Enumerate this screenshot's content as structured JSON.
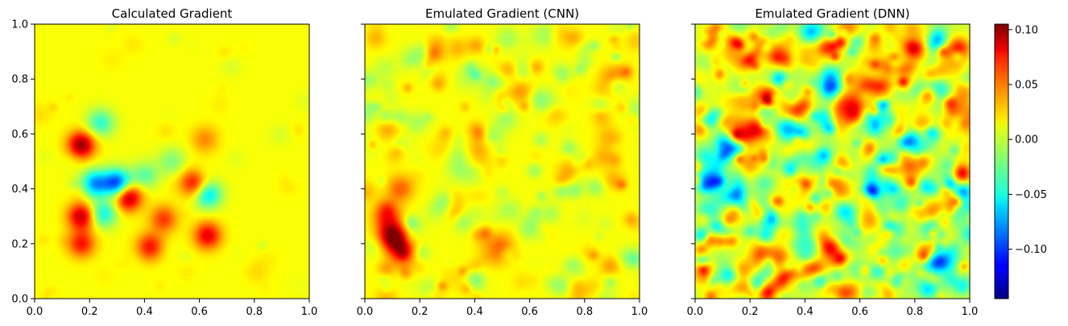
{
  "chart_data": [
    {
      "type": "heatmap",
      "title": "Calculated Gradient",
      "xlim": [
        0,
        1
      ],
      "ylim": [
        0,
        1
      ],
      "x_ticks": [
        "0.0",
        "0.2",
        "0.4",
        "0.6",
        "0.8",
        "1.0"
      ],
      "y_ticks": [
        "0.0",
        "0.2",
        "0.4",
        "0.6",
        "0.8",
        "1.0"
      ],
      "show_y_tick_labels": true,
      "colormap": "jet",
      "background_value": 0.01,
      "blobs": [
        {
          "x": 0.17,
          "y": 0.56,
          "value": 0.09
        },
        {
          "x": 0.34,
          "y": 0.37,
          "value": 0.09
        },
        {
          "x": 0.17,
          "y": 0.3,
          "value": 0.08
        },
        {
          "x": 0.17,
          "y": 0.2,
          "value": 0.06
        },
        {
          "x": 0.3,
          "y": 0.42,
          "value": -0.11
        },
        {
          "x": 0.22,
          "y": 0.42,
          "value": -0.08
        },
        {
          "x": 0.25,
          "y": 0.31,
          "value": -0.06
        },
        {
          "x": 0.58,
          "y": 0.42,
          "value": 0.07
        },
        {
          "x": 0.63,
          "y": 0.38,
          "value": -0.07
        },
        {
          "x": 0.24,
          "y": 0.64,
          "value": -0.05
        },
        {
          "x": 0.47,
          "y": 0.29,
          "value": 0.05
        },
        {
          "x": 0.42,
          "y": 0.19,
          "value": 0.06
        },
        {
          "x": 0.63,
          "y": 0.23,
          "value": 0.07
        },
        {
          "x": 0.62,
          "y": 0.58,
          "value": 0.03
        },
        {
          "x": 0.4,
          "y": 0.45,
          "value": -0.04
        },
        {
          "x": 0.5,
          "y": 0.5,
          "value": -0.03
        }
      ]
    },
    {
      "type": "heatmap",
      "title": "Emulated Gradient (CNN)",
      "xlim": [
        0,
        1
      ],
      "ylim": [
        0,
        1
      ],
      "x_ticks": [
        "0.0",
        "0.2",
        "0.4",
        "0.6",
        "0.8",
        "1.0"
      ],
      "y_ticks": [
        "0.0",
        "0.2",
        "0.4",
        "0.6",
        "0.8",
        "1.0"
      ],
      "show_y_tick_labels": false,
      "colormap": "jet",
      "background_value": 0.01,
      "blobs": [
        {
          "x": 0.1,
          "y": 0.23,
          "value": 0.09
        },
        {
          "x": 0.14,
          "y": 0.18,
          "value": 0.08
        },
        {
          "x": 0.08,
          "y": 0.3,
          "value": 0.05
        },
        {
          "x": 0.13,
          "y": 0.4,
          "value": 0.04
        },
        {
          "x": 0.35,
          "y": 0.47,
          "value": -0.02
        },
        {
          "x": 0.28,
          "y": 0.33,
          "value": -0.02
        },
        {
          "x": 0.5,
          "y": 0.2,
          "value": 0.02
        }
      ]
    },
    {
      "type": "heatmap",
      "title": "Emulated Gradient (DNN)",
      "xlim": [
        0,
        1
      ],
      "ylim": [
        0,
        1
      ],
      "x_ticks": [
        "0.0",
        "0.2",
        "0.4",
        "0.6",
        "0.8",
        "1.0"
      ],
      "y_ticks": [
        "0.0",
        "0.2",
        "0.4",
        "0.6",
        "0.8",
        "1.0"
      ],
      "show_y_tick_labels": false,
      "colormap": "jet",
      "background_value": 0.0,
      "blobs": [
        {
          "x": 0.2,
          "y": 0.5,
          "value": 0.04
        },
        {
          "x": 0.1,
          "y": 0.7,
          "value": 0.03
        },
        {
          "x": 0.6,
          "y": 0.25,
          "value": -0.02
        },
        {
          "x": 0.8,
          "y": 0.3,
          "value": 0.03
        },
        {
          "x": 0.95,
          "y": 0.9,
          "value": 0.05
        },
        {
          "x": 0.5,
          "y": 0.6,
          "value": -0.02
        }
      ]
    }
  ],
  "colorbar": {
    "vmin": -0.145,
    "vmax": 0.105,
    "colormap": "jet",
    "tick_values": [
      0.1,
      0.05,
      0.0,
      -0.05,
      -0.1
    ],
    "tick_labels": [
      "0.10",
      "0.05",
      "0.00",
      "−0.05",
      "−0.10"
    ]
  }
}
